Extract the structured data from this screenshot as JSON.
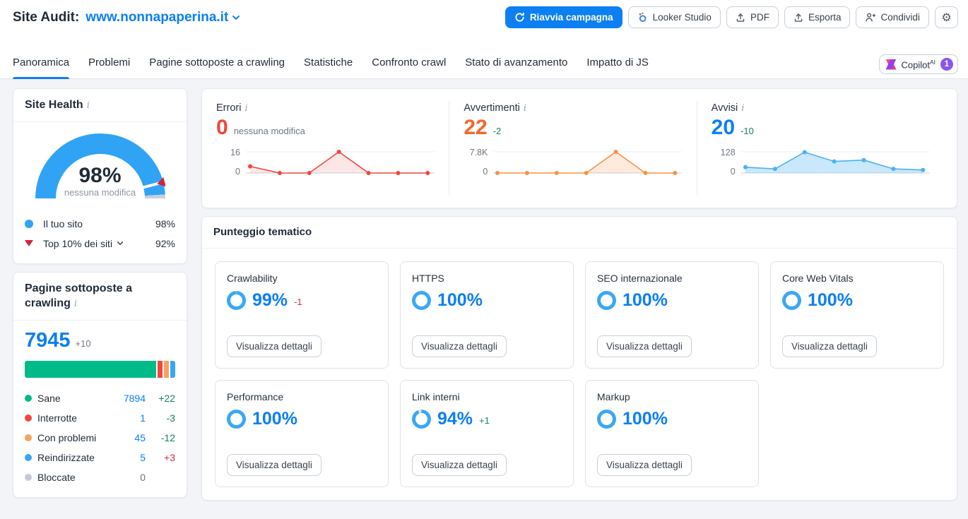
{
  "header": {
    "title": "Site Audit:",
    "domain": "www.nonnapaperina.it",
    "actions": {
      "restart": "Riavvia campagna",
      "looker_studio": "Looker Studio",
      "pdf": "PDF",
      "export": "Esporta",
      "share": "Condividi"
    }
  },
  "tabs": [
    {
      "label": "Panoramica",
      "active": true
    },
    {
      "label": "Problemi",
      "active": false
    },
    {
      "label": "Pagine sottoposte a crawling",
      "active": false
    },
    {
      "label": "Statistiche",
      "active": false
    },
    {
      "label": "Confronto crawl",
      "active": false
    },
    {
      "label": "Stato di avanzamento",
      "active": false
    },
    {
      "label": "Impatto di JS",
      "active": false
    }
  ],
  "copilot": {
    "label": "Copilot",
    "sup": "AI",
    "badge": "1"
  },
  "site_health": {
    "title": "Site Health",
    "score": 98,
    "score_label": "98%",
    "change_label": "nessuna modifica",
    "legend": [
      {
        "label": "Il tuo sito",
        "value": "98%"
      },
      {
        "label": "Top 10% dei siti",
        "value": "92%"
      }
    ]
  },
  "crawled_pages": {
    "title": "Pagine sottoposte a crawling",
    "total": "7945",
    "total_change": "+10",
    "rows": [
      {
        "label": "Sane",
        "value": "7894",
        "change": "+22",
        "color": "#00ba88"
      },
      {
        "label": "Interrotte",
        "value": "1",
        "change": "-3",
        "color": "#f4453d"
      },
      {
        "label": "Con problemi",
        "value": "45",
        "change": "-12",
        "color": "#f9a25b"
      },
      {
        "label": "Reindirizzate",
        "value": "5",
        "change": "+3",
        "color": "#35a7f5"
      },
      {
        "label": "Bloccate",
        "value": "0",
        "change": "",
        "color": "#c4c9d2"
      }
    ]
  },
  "overview": [
    {
      "title": "Errori",
      "value": "0",
      "change": "nessuna modifica"
    },
    {
      "title": "Avvertimenti",
      "value": "22",
      "change": "-2"
    },
    {
      "title": "Avvisi",
      "value": "20",
      "change": "-10"
    }
  ],
  "chart_data": [
    {
      "type": "area",
      "name": "errori-trend",
      "values": [
        5,
        0,
        0,
        16,
        0,
        0,
        0
      ],
      "ymax": 16,
      "ylabels": [
        "16",
        "0"
      ],
      "color": "#f0463d",
      "fill": "rgba(240,70,61,0.13)"
    },
    {
      "type": "area",
      "name": "avvertimenti-trend",
      "values": [
        0,
        0,
        0,
        0,
        7800,
        0,
        0
      ],
      "ymax": 7800,
      "ylabels": [
        "7.8K",
        "0"
      ],
      "color": "#f79246",
      "fill": "rgba(247,146,70,0.18)"
    },
    {
      "type": "area",
      "name": "avvisi-trend",
      "values": [
        35,
        25,
        126,
        70,
        78,
        25,
        18
      ],
      "ymax": 128,
      "ylabels": [
        "128",
        "0"
      ],
      "color": "#4cb0f2",
      "fill": "rgba(120,198,245,0.4)"
    },
    {
      "type": "gauge",
      "name": "site-health-gauge",
      "value": 98,
      "benchmark": 92,
      "range": [
        0,
        100
      ]
    },
    {
      "type": "stacked_bar",
      "name": "crawled-pages-bar",
      "segments": [
        {
          "label": "Sane",
          "value": 7894,
          "color": "#00ba88"
        },
        {
          "label": "Interrotte",
          "value": 1,
          "color": "#f4453d"
        },
        {
          "label": "Con problemi",
          "value": 45,
          "color": "#f9a25b"
        },
        {
          "label": "Reindirizzate",
          "value": 5,
          "color": "#35a7f5"
        },
        {
          "label": "Bloccate",
          "value": 0,
          "color": "#c4c9d2"
        }
      ]
    }
  ],
  "topic_scores": {
    "title": "Punteggio tematico",
    "details_button": "Visualizza dettagli",
    "cards": [
      {
        "title": "Crawlability",
        "score": 99,
        "score_label": "99%",
        "change": "-1"
      },
      {
        "title": "HTTPS",
        "score": 100,
        "score_label": "100%",
        "change": ""
      },
      {
        "title": "SEO internazionale",
        "score": 100,
        "score_label": "100%",
        "change": ""
      },
      {
        "title": "Core Web Vitals",
        "score": 100,
        "score_label": "100%",
        "change": ""
      },
      {
        "title": "Performance",
        "score": 100,
        "score_label": "100%",
        "change": ""
      },
      {
        "title": "Link interni",
        "score": 94,
        "score_label": "94%",
        "change": "+1"
      },
      {
        "title": "Markup",
        "score": 100,
        "score_label": "100%",
        "change": ""
      }
    ]
  },
  "colors": {
    "accent_blue": "#0c7ff2",
    "error_red": "#f0463d",
    "warning_orange": "#f2682a",
    "positive_green": "#14835c",
    "negative_red": "#d92c44",
    "healthy_green": "#00ba88"
  }
}
